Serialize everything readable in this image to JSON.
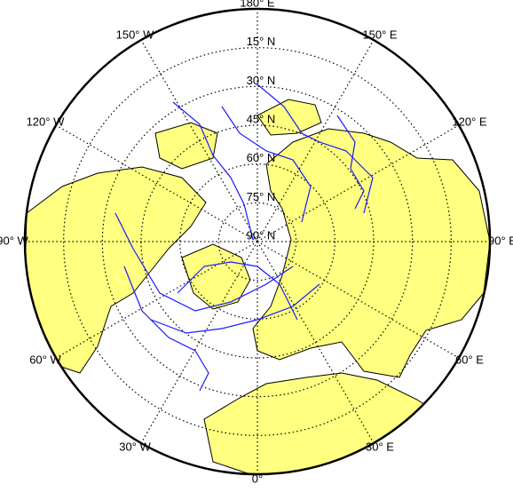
{
  "map": {
    "projection": "polar",
    "parallels": [
      {
        "value": 15,
        "label": "15° N"
      },
      {
        "value": 30,
        "label": "30° N"
      },
      {
        "value": 45,
        "label": "45° N"
      },
      {
        "value": 60,
        "label": "60° N"
      },
      {
        "value": 75,
        "label": "75° N"
      },
      {
        "value": 90,
        "label": "90° N"
      }
    ],
    "meridians": [
      {
        "value": 180,
        "label": "180° E"
      },
      {
        "value": -150,
        "label": "150° W"
      },
      {
        "value": 150,
        "label": "150° E"
      },
      {
        "value": -120,
        "label": "120° W"
      },
      {
        "value": 120,
        "label": "120° E"
      },
      {
        "value": -90,
        "label": "90° W"
      },
      {
        "value": 90,
        "label": "90° E"
      },
      {
        "value": -60,
        "label": "60° W"
      },
      {
        "value": 60,
        "label": "60° E"
      },
      {
        "value": -30,
        "label": "30° W"
      },
      {
        "value": 30,
        "label": "30° E"
      },
      {
        "value": 0,
        "label": "0°"
      }
    ]
  }
}
